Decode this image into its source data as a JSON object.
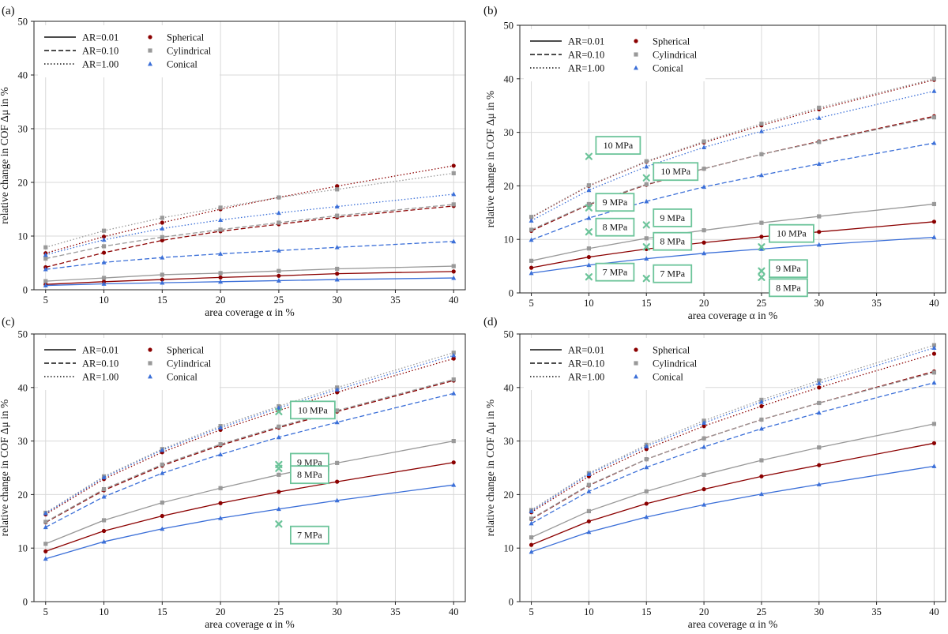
{
  "figure": {
    "panel_labels": [
      "(a)",
      "(b)",
      "(c)",
      "(d)"
    ]
  },
  "styles": {
    "colors": {
      "Spherical": "#8b0000",
      "Cylindrical": "#999999",
      "Conical": "#3b6fd8",
      "annotation": "#6cc49a",
      "grid": "#d9d9d9",
      "axis": "#222222"
    },
    "dash": {
      "AR=0.01": "solid",
      "AR=0.10": "dashed",
      "AR=1.00": "dotted"
    }
  },
  "legend": {
    "lines": [
      "AR=0.01",
      "AR=0.10",
      "AR=1.00"
    ],
    "markers": [
      {
        "name": "Spherical",
        "marker": "circle"
      },
      {
        "name": "Cylindrical",
        "marker": "square"
      },
      {
        "name": "Conical",
        "marker": "triangle"
      }
    ]
  },
  "chart_data": [
    {
      "panel": "(a)",
      "type": "line",
      "xlabel": "area coverage α in %",
      "ylabel": "relative change in COF Δμ in %",
      "x": [
        5,
        10,
        15,
        20,
        25,
        30,
        40
      ],
      "xticks": [
        5,
        10,
        15,
        20,
        25,
        30,
        35,
        40
      ],
      "yticks": [
        0,
        10,
        20,
        30,
        40,
        50
      ],
      "xlim": [
        4,
        41
      ],
      "ylim": [
        0,
        50
      ],
      "series": [
        {
          "shape": "Spherical",
          "ar": "AR=0.01",
          "values": [
            1.0,
            1.5,
            1.9,
            2.3,
            2.6,
            3.0,
            3.4
          ]
        },
        {
          "shape": "Cylindrical",
          "ar": "AR=0.01",
          "values": [
            1.6,
            2.2,
            2.8,
            3.1,
            3.5,
            3.9,
            4.4
          ]
        },
        {
          "shape": "Conical",
          "ar": "AR=0.01",
          "values": [
            0.8,
            1.1,
            1.3,
            1.5,
            1.7,
            1.9,
            2.2
          ]
        },
        {
          "shape": "Spherical",
          "ar": "AR=0.10",
          "values": [
            4.2,
            6.9,
            9.2,
            10.9,
            12.2,
            13.5,
            15.6
          ]
        },
        {
          "shape": "Cylindrical",
          "ar": "AR=0.10",
          "values": [
            5.8,
            8.1,
            9.8,
            11.2,
            12.5,
            13.8,
            15.9
          ]
        },
        {
          "shape": "Conical",
          "ar": "AR=0.10",
          "values": [
            3.8,
            5.1,
            6.0,
            6.7,
            7.3,
            7.9,
            9.0
          ]
        },
        {
          "shape": "Spherical",
          "ar": "AR=1.00",
          "values": [
            6.8,
            9.9,
            12.5,
            15.0,
            17.2,
            19.3,
            23.1
          ]
        },
        {
          "shape": "Cylindrical",
          "ar": "AR=1.00",
          "values": [
            7.9,
            11.0,
            13.4,
            15.3,
            17.2,
            18.7,
            21.7
          ]
        },
        {
          "shape": "Conical",
          "ar": "AR=1.00",
          "values": [
            6.5,
            9.3,
            11.4,
            13.0,
            14.3,
            15.5,
            17.8
          ]
        }
      ],
      "annotations": []
    },
    {
      "panel": "(b)",
      "type": "line",
      "xlabel": "area coverage α in %",
      "ylabel": "relative change in COF Δμ in %",
      "x": [
        5,
        10,
        15,
        20,
        25,
        30,
        40
      ],
      "xticks": [
        5,
        10,
        15,
        20,
        25,
        30,
        35,
        40
      ],
      "yticks": [
        0,
        10,
        20,
        30,
        40,
        50
      ],
      "xlim": [
        4,
        41
      ],
      "ylim": [
        0,
        50
      ],
      "series": [
        {
          "shape": "Spherical",
          "ar": "AR=0.01",
          "values": [
            4.7,
            6.7,
            8.2,
            9.4,
            10.5,
            11.4,
            13.3
          ]
        },
        {
          "shape": "Cylindrical",
          "ar": "AR=0.01",
          "values": [
            6.0,
            8.3,
            10.2,
            11.7,
            13.1,
            14.3,
            16.6
          ]
        },
        {
          "shape": "Conical",
          "ar": "AR=0.01",
          "values": [
            3.7,
            5.2,
            6.4,
            7.4,
            8.2,
            9.0,
            10.4
          ]
        },
        {
          "shape": "Spherical",
          "ar": "AR=0.10",
          "values": [
            11.6,
            16.5,
            20.2,
            23.2,
            25.9,
            28.3,
            33.0
          ]
        },
        {
          "shape": "Cylindrical",
          "ar": "AR=0.10",
          "values": [
            11.8,
            16.6,
            20.3,
            23.2,
            25.9,
            28.2,
            32.8
          ]
        },
        {
          "shape": "Conical",
          "ar": "AR=0.10",
          "values": [
            9.9,
            14.0,
            17.1,
            19.8,
            22.0,
            24.1,
            28.0
          ]
        },
        {
          "shape": "Spherical",
          "ar": "AR=1.00",
          "values": [
            14.1,
            20.0,
            24.5,
            28.1,
            31.3,
            34.3,
            39.8
          ]
        },
        {
          "shape": "Cylindrical",
          "ar": "AR=1.00",
          "values": [
            14.2,
            20.1,
            24.6,
            28.3,
            31.6,
            34.6,
            40.0
          ]
        },
        {
          "shape": "Conical",
          "ar": "AR=1.00",
          "values": [
            13.5,
            19.2,
            23.6,
            27.2,
            30.2,
            32.7,
            37.7
          ]
        }
      ],
      "annotations": [
        {
          "label": "10 MPa",
          "x": 10,
          "y": 25.5
        },
        {
          "label": "9 MPa",
          "x": 10,
          "y": 15.9
        },
        {
          "label": "8 MPa",
          "x": 10,
          "y": 11.4
        },
        {
          "label": "7 MPa",
          "x": 10,
          "y": 3.0
        },
        {
          "label": "10 MPa",
          "x": 15,
          "y": 21.5
        },
        {
          "label": "9 MPa",
          "x": 15,
          "y": 12.7
        },
        {
          "label": "8 MPa",
          "x": 15,
          "y": 8.6
        },
        {
          "label": "7 MPa",
          "x": 15,
          "y": 2.7
        },
        {
          "label": "10 MPa",
          "x": 25,
          "y": 8.6
        },
        {
          "label": "9 MPa",
          "x": 25,
          "y": 4.1
        },
        {
          "label": "8 MPa",
          "x": 25,
          "y": 2.9
        }
      ]
    },
    {
      "panel": "(c)",
      "type": "line",
      "xlabel": "area coverage α in %",
      "ylabel": "relative change in COF Δμ in %",
      "x": [
        5,
        10,
        15,
        20,
        25,
        30,
        40
      ],
      "xticks": [
        5,
        10,
        15,
        20,
        25,
        30,
        35,
        40
      ],
      "yticks": [
        0,
        10,
        20,
        30,
        40,
        50
      ],
      "xlim": [
        4,
        41
      ],
      "ylim": [
        0,
        50
      ],
      "series": [
        {
          "shape": "Spherical",
          "ar": "AR=0.01",
          "values": [
            9.4,
            13.2,
            16.0,
            18.4,
            20.5,
            22.4,
            26.0
          ]
        },
        {
          "shape": "Cylindrical",
          "ar": "AR=0.01",
          "values": [
            10.8,
            15.2,
            18.5,
            21.2,
            23.7,
            25.9,
            30.0
          ]
        },
        {
          "shape": "Conical",
          "ar": "AR=0.01",
          "values": [
            8.0,
            11.2,
            13.6,
            15.6,
            17.3,
            18.9,
            21.8
          ]
        },
        {
          "shape": "Spherical",
          "ar": "AR=0.10",
          "values": [
            14.8,
            20.8,
            25.4,
            29.2,
            32.5,
            35.5,
            41.3
          ]
        },
        {
          "shape": "Cylindrical",
          "ar": "AR=0.10",
          "values": [
            14.9,
            21.0,
            25.6,
            29.4,
            32.7,
            35.7,
            41.5
          ]
        },
        {
          "shape": "Conical",
          "ar": "AR=0.10",
          "values": [
            13.9,
            19.6,
            24.0,
            27.5,
            30.7,
            33.5,
            38.9
          ]
        },
        {
          "shape": "Spherical",
          "ar": "AR=1.00",
          "values": [
            16.3,
            22.9,
            27.9,
            32.1,
            35.7,
            39.1,
            45.4
          ]
        },
        {
          "shape": "Cylindrical",
          "ar": "AR=1.00",
          "values": [
            16.6,
            23.4,
            28.5,
            32.8,
            36.5,
            40.0,
            46.5
          ]
        },
        {
          "shape": "Conical",
          "ar": "AR=1.00",
          "values": [
            16.5,
            23.2,
            28.3,
            32.5,
            36.2,
            39.6,
            46.0
          ]
        }
      ],
      "annotations": [
        {
          "label": "10 MPa",
          "x": 25,
          "y": 35.5
        },
        {
          "label": "9 MPa",
          "x": 25,
          "y": 25.6
        },
        {
          "label": "8 MPa",
          "x": 25,
          "y": 24.9
        },
        {
          "label": "7 MPa",
          "x": 25,
          "y": 14.5
        }
      ]
    },
    {
      "panel": "(d)",
      "type": "line",
      "xlabel": "area coverage α in %",
      "ylabel": "relative change in COF Δμ in %",
      "x": [
        5,
        10,
        15,
        20,
        25,
        30,
        40
      ],
      "xticks": [
        5,
        10,
        15,
        20,
        25,
        30,
        35,
        40
      ],
      "yticks": [
        0,
        10,
        20,
        30,
        40,
        50
      ],
      "xlim": [
        4,
        41
      ],
      "ylim": [
        0,
        50
      ],
      "series": [
        {
          "shape": "Spherical",
          "ar": "AR=0.01",
          "values": [
            10.6,
            15.0,
            18.3,
            21.0,
            23.4,
            25.5,
            29.6
          ]
        },
        {
          "shape": "Cylindrical",
          "ar": "AR=0.01",
          "values": [
            12.0,
            16.9,
            20.6,
            23.7,
            26.4,
            28.8,
            33.2
          ]
        },
        {
          "shape": "Conical",
          "ar": "AR=0.01",
          "values": [
            9.3,
            13.0,
            15.8,
            18.1,
            20.1,
            21.9,
            25.3
          ]
        },
        {
          "shape": "Spherical",
          "ar": "AR=0.10",
          "values": [
            15.4,
            21.7,
            26.6,
            30.5,
            34.0,
            37.1,
            43.0
          ]
        },
        {
          "shape": "Cylindrical",
          "ar": "AR=0.10",
          "values": [
            15.5,
            21.8,
            26.6,
            30.5,
            34.0,
            37.1,
            42.8
          ]
        },
        {
          "shape": "Conical",
          "ar": "AR=0.10",
          "values": [
            14.6,
            20.6,
            25.1,
            28.9,
            32.3,
            35.3,
            40.9
          ]
        },
        {
          "shape": "Spherical",
          "ar": "AR=1.00",
          "values": [
            16.7,
            23.4,
            28.5,
            32.8,
            36.5,
            40.0,
            46.3
          ]
        },
        {
          "shape": "Cylindrical",
          "ar": "AR=1.00",
          "values": [
            17.1,
            24.0,
            29.3,
            33.8,
            37.7,
            41.3,
            47.9
          ]
        },
        {
          "shape": "Conical",
          "ar": "AR=1.00",
          "values": [
            16.9,
            23.8,
            29.0,
            33.4,
            37.3,
            40.8,
            47.4
          ]
        }
      ],
      "annotations": []
    }
  ]
}
